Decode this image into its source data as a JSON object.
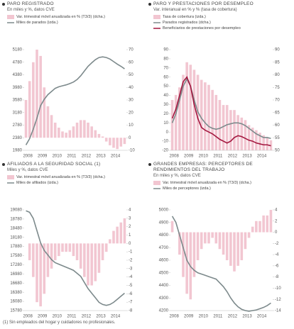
{
  "chart_data": [
    {
      "type": "combo",
      "title": "PARO REGISTRADO",
      "subtitle": "En miles y %, datos CVE",
      "categories": [
        null,
        "2008",
        null,
        null,
        null,
        "2009",
        null,
        null,
        null,
        "2010",
        null,
        null,
        null,
        "2011",
        null,
        null,
        null,
        "2012",
        null,
        null,
        null,
        "2013",
        null,
        null,
        null,
        "2014",
        null,
        null
      ],
      "series": [
        {
          "name": "Var. trimestral móvil anualizada en % (T3/3) (dcha.)",
          "color": "#f2c6d1",
          "mark": "bar",
          "axis": "y2",
          "values": [
            30,
            45,
            60,
            70,
            65,
            40,
            25,
            18,
            12,
            8,
            5,
            4,
            6,
            9,
            12,
            14,
            14,
            12,
            9,
            6,
            3,
            1,
            -3,
            -6,
            -8,
            -9,
            -7,
            -5
          ]
        },
        {
          "name": "Miles de parados (izda.)",
          "color": "#7d8a8c",
          "mark": "line",
          "values": [
            2150,
            2350,
            2650,
            3000,
            3400,
            3600,
            3750,
            3850,
            3950,
            4000,
            4030,
            4060,
            4100,
            4150,
            4230,
            4350,
            4500,
            4650,
            4760,
            4860,
            4930,
            4950,
            4930,
            4880,
            4800,
            4720,
            4650,
            4570
          ]
        }
      ],
      "ylim": [
        1980,
        5180
      ],
      "yticks": [
        1980,
        2380,
        2780,
        3180,
        3580,
        3980,
        4380,
        4780,
        5180
      ],
      "y2lim": [
        -10,
        70
      ],
      "y2ticks": [
        -10,
        0,
        10,
        20,
        30,
        40,
        50,
        60,
        70
      ],
      "grid": false
    },
    {
      "type": "combo",
      "title": "PARO Y PRESTACIONES POR DESEMPLEO",
      "subtitle": "Var. interanual en % y % (tasa de cobertura)",
      "categories": [
        null,
        "2008",
        null,
        null,
        null,
        "2009",
        null,
        null,
        null,
        "2010",
        null,
        null,
        null,
        "2011",
        null,
        null,
        null,
        "2012",
        null,
        null,
        null,
        "2013",
        null,
        null,
        null,
        "2014",
        null,
        null
      ],
      "series": [
        {
          "name": "Tasa de cobertura (izda.)",
          "color": "#f2c6d1",
          "mark": "bar",
          "axis": "y2",
          "values": [
            70,
            72,
            75,
            80,
            85,
            84,
            82,
            80,
            78,
            77,
            76,
            74,
            72,
            70,
            68,
            68,
            66,
            66,
            64,
            63,
            62,
            60,
            59,
            58,
            57,
            56,
            55,
            54
          ]
        },
        {
          "name": "Parados registrados (dcha.)",
          "color": "#7d8a8c",
          "mark": "line",
          "values": [
            10,
            20,
            35,
            50,
            58,
            50,
            35,
            22,
            15,
            10,
            6,
            4,
            3,
            4,
            6,
            8,
            9,
            10,
            10,
            9,
            7,
            4,
            1,
            -2,
            -4,
            -6,
            -6,
            -7
          ]
        },
        {
          "name": "Beneficiarios de prestaciones por desempleo",
          "color": "#a3173f",
          "mark": "line",
          "values": [
            15,
            25,
            40,
            55,
            60,
            50,
            30,
            15,
            5,
            2,
            0,
            -2,
            -5,
            -8,
            -10,
            -12,
            -10,
            -6,
            -4,
            -5,
            -7,
            -9,
            -10,
            -12,
            -13,
            -14,
            -14,
            -15
          ]
        }
      ],
      "ylim": [
        -20,
        90
      ],
      "yticks": [
        -20,
        -10,
        0,
        10,
        20,
        30,
        40,
        50,
        60,
        70,
        80,
        90
      ],
      "y2lim": [
        50,
        90
      ],
      "y2ticks": [
        50,
        55,
        60,
        65,
        70,
        75,
        80,
        85,
        90
      ],
      "grid": false
    },
    {
      "type": "combo",
      "title": "AFILIADOS A LA SEGURIDAD SOCIAL (1)",
      "subtitle": "Miles y %, datos CVE",
      "footnote": "(1) Sin empleados del hogar y cuidadores no profesionales.",
      "categories": [
        null,
        "2008",
        null,
        null,
        null,
        "2009",
        null,
        null,
        null,
        "2010",
        null,
        null,
        null,
        "2011",
        null,
        null,
        null,
        "2012",
        null,
        null,
        null,
        "2013",
        null,
        null,
        null,
        "2014",
        null,
        null
      ],
      "series": [
        {
          "name": "Var. trimestral móvil anualizada en % (T3/3) (dcha.)",
          "color": "#f2c6d1",
          "mark": "bar",
          "axis": "y2",
          "values": [
            0,
            -2,
            -4,
            -7,
            -7.5,
            -6,
            -4,
            -3,
            -2,
            -1.5,
            -1,
            -1,
            -1,
            -1.5,
            -2,
            -3,
            -4,
            -5,
            -5,
            -4.5,
            -3.5,
            -2,
            -1,
            0.5,
            1.5,
            2,
            2.5,
            3
          ]
        },
        {
          "name": "Miles de afiliados (izda.)",
          "color": "#7d8a8c",
          "mark": "line",
          "values": [
            19050,
            19000,
            18800,
            18400,
            18000,
            17750,
            17600,
            17450,
            17350,
            17300,
            17250,
            17200,
            17150,
            17100,
            17000,
            16900,
            16700,
            16500,
            16350,
            16200,
            16050,
            15980,
            15950,
            15980,
            16050,
            16150,
            16250,
            16350
          ]
        }
      ],
      "ylim": [
        15780,
        19080
      ],
      "yticks": [
        15780,
        16080,
        16380,
        16680,
        16980,
        17280,
        17580,
        17880,
        18180,
        18480,
        18780,
        19080
      ],
      "y2lim": [
        -8,
        4
      ],
      "y2ticks": [
        -8,
        -7,
        -6,
        -5,
        -4,
        -3,
        -2,
        -1,
        0,
        1,
        2,
        3,
        4
      ],
      "grid": false
    },
    {
      "type": "combo",
      "title": "GRANDES EMPRESAS: PERCEPTORES DE RENDIMIENTOS DEL TRABAJO",
      "subtitle": "En miles y %, datos CVE",
      "categories": [
        null,
        "2008",
        null,
        null,
        null,
        "2009",
        null,
        null,
        null,
        "2010",
        null,
        null,
        null,
        "2011",
        null,
        null,
        null,
        "2012",
        null,
        null,
        null,
        "2013",
        null,
        null,
        null,
        "2014",
        null,
        null
      ],
      "series": [
        {
          "name": "Var. trimestral móvil anualizada en % (T3/3) (dcha.)",
          "color": "#f2c6d1",
          "mark": "bar",
          "axis": "y2",
          "values": [
            2,
            0,
            -4,
            -8,
            -11,
            -12,
            -8,
            -5,
            -3,
            -2,
            -2,
            -1,
            -2,
            -3,
            -4,
            -5,
            -6,
            -7,
            -6,
            -5,
            -3,
            -1,
            1,
            2,
            2,
            3,
            3,
            4
          ]
        },
        {
          "name": "Miles de perceptores (izda.)",
          "color": "#7d8a8c",
          "mark": "line",
          "values": [
            4950,
            4900,
            4800,
            4700,
            4600,
            4550,
            4520,
            4500,
            4490,
            4480,
            4470,
            4460,
            4450,
            4420,
            4390,
            4350,
            4300,
            4260,
            4230,
            4210,
            4200,
            4195,
            4200,
            4205,
            4215,
            4225,
            4240,
            4260
          ]
        }
      ],
      "ylim": [
        4200,
        5000
      ],
      "yticks": [
        4200,
        4300,
        4400,
        4500,
        4600,
        4700,
        4800,
        4900,
        5000
      ],
      "y2lim": [
        -14,
        4
      ],
      "y2ticks": [
        -14,
        -12,
        -10,
        -8,
        -6,
        -4,
        -2,
        0,
        2,
        4
      ],
      "grid": false
    }
  ]
}
